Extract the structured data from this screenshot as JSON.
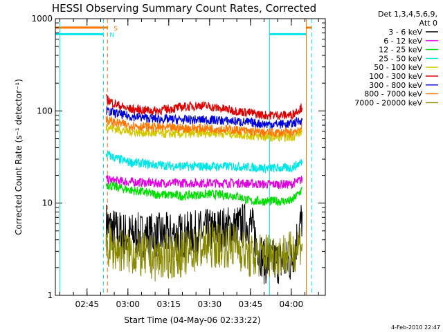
{
  "chart_data": {
    "type": "line",
    "title": "HESSI Observing Summary Count Rates, Corrected",
    "ylabel": "Corrected Count Rate (s⁻¹ detector⁻¹)",
    "xlabel": "Start Time (04-May-06 02:33:22)",
    "footer": "4-Feb-2010 22:47",
    "y_scale": "log",
    "ylim": [
      1,
      1000
    ],
    "xlim": [
      "02:33:22",
      "04:12:30"
    ],
    "y_ticks": [
      1,
      10,
      100,
      1000
    ],
    "x_ticks": [
      "02:45",
      "03:00",
      "03:15",
      "03:30",
      "03:45",
      "04:00"
    ],
    "legend_header": [
      "Det 1,3,4,5,6,9,",
      "Att 0"
    ],
    "legend_position": "right",
    "series": [
      {
        "name": "3 - 6 keV",
        "color": "#000000",
        "x": [
          "02:52:00",
          "02:55:00",
          "03:00:00",
          "03:10:00",
          "03:20:00",
          "03:30:00",
          "03:40:00",
          "03:45:00",
          "03:50:00",
          "04:00:00",
          "04:04:00"
        ],
        "values": [
          6,
          5,
          4.5,
          4.5,
          4.5,
          5,
          5.5,
          6,
          2.3,
          2.3,
          7
        ]
      },
      {
        "name": "6 - 12 keV",
        "color": "#e000e0",
        "x": [
          "02:52:00",
          "02:55:00",
          "03:00:00",
          "03:10:00",
          "03:20:00",
          "03:30:00",
          "03:40:00",
          "03:50:00",
          "04:00:00",
          "04:04:00"
        ],
        "values": [
          18,
          17.5,
          17,
          16.5,
          16.5,
          16.5,
          16.5,
          16,
          16,
          18
        ]
      },
      {
        "name": "12 - 25 keV",
        "color": "#00dd00",
        "x": [
          "02:52:00",
          "02:55:00",
          "03:00:00",
          "03:10:00",
          "03:20:00",
          "03:30:00",
          "03:40:00",
          "03:45:00",
          "03:50:00",
          "04:00:00",
          "04:04:00"
        ],
        "values": [
          16,
          15,
          14,
          12.5,
          12,
          12.5,
          12,
          10.5,
          10.5,
          10.5,
          14
        ]
      },
      {
        "name": "25 - 50 keV",
        "color": "#00e6e6",
        "x": [
          "02:52:00",
          "02:55:00",
          "03:00:00",
          "03:10:00",
          "03:20:00",
          "03:30:00",
          "03:40:00",
          "03:50:00",
          "04:00:00",
          "04:04:00"
        ],
        "values": [
          34,
          31,
          28,
          26,
          25,
          25,
          25,
          24,
          24,
          28
        ]
      },
      {
        "name": "50 - 100 keV",
        "color": "#d4c800",
        "x": [
          "02:52:00",
          "02:55:00",
          "03:00:00",
          "03:10:00",
          "03:20:00",
          "03:30:00",
          "03:40:00",
          "03:50:00",
          "04:00:00",
          "04:04:00"
        ],
        "values": [
          68,
          64,
          60,
          57,
          56,
          58,
          56,
          52,
          52,
          60
        ]
      },
      {
        "name": "100 - 300 keV",
        "color": "#dd0000",
        "x": [
          "02:52:00",
          "02:55:00",
          "03:00:00",
          "03:10:00",
          "03:20:00",
          "03:27:00",
          "03:35:00",
          "03:45:00",
          "03:50:00",
          "04:00:00",
          "04:04:00"
        ],
        "values": [
          135,
          120,
          105,
          100,
          110,
          115,
          105,
          95,
          90,
          90,
          110
        ]
      },
      {
        "name": "300 - 800 keV",
        "color": "#0000dd",
        "x": [
          "02:52:00",
          "02:55:00",
          "03:00:00",
          "03:10:00",
          "03:20:00",
          "03:30:00",
          "03:40:00",
          "03:50:00",
          "04:00:00",
          "04:04:00"
        ],
        "values": [
          100,
          95,
          88,
          82,
          80,
          80,
          77,
          72,
          72,
          80
        ]
      },
      {
        "name": "800 - 7000 keV",
        "color": "#ff7700",
        "x": [
          "02:52:00",
          "02:55:00",
          "03:00:00",
          "03:10:00",
          "03:20:00",
          "03:30:00",
          "03:40:00",
          "03:50:00",
          "04:00:00",
          "04:04:00"
        ],
        "values": [
          80,
          75,
          70,
          66,
          65,
          65,
          62,
          58,
          58,
          66
        ]
      },
      {
        "name": "7000 - 20000 keV",
        "color": "#888800",
        "x": [
          "02:52:00",
          "02:55:00",
          "03:00:00",
          "03:10:00",
          "03:20:00",
          "03:30:00",
          "03:40:00",
          "03:45:00",
          "03:50:00",
          "04:00:00",
          "04:04:00"
        ],
        "values": [
          3.5,
          3.2,
          3,
          2.5,
          2.8,
          3.5,
          3.5,
          2.6,
          2.8,
          2.8,
          4
        ]
      }
    ],
    "flags": [
      {
        "label": "S",
        "color": "#ff7700",
        "value": 800,
        "segments": [
          [
            "02:33:22",
            "02:52:30"
          ],
          [
            "04:05:30",
            "04:07:30"
          ]
        ]
      },
      {
        "label": "N",
        "color": "#00e6e6",
        "value": 680,
        "segments": [
          [
            "02:33:22",
            "02:51:00"
          ],
          [
            "03:52:00",
            "04:05:30"
          ]
        ]
      }
    ],
    "markers": [
      {
        "time": "02:35:00",
        "color": "#00e6e6",
        "style": "solid"
      },
      {
        "time": "02:51:00",
        "color": "#00e6e6",
        "style": "dashed"
      },
      {
        "time": "02:52:30",
        "color": "#ff7700",
        "style": "dashed"
      },
      {
        "time": "03:52:00",
        "color": "#00e6e6",
        "style": "solid"
      },
      {
        "time": "04:05:30",
        "color": "#ff7700",
        "style": "solid"
      },
      {
        "time": "04:07:30",
        "color": "#00e6e6",
        "style": "dashed"
      }
    ]
  }
}
